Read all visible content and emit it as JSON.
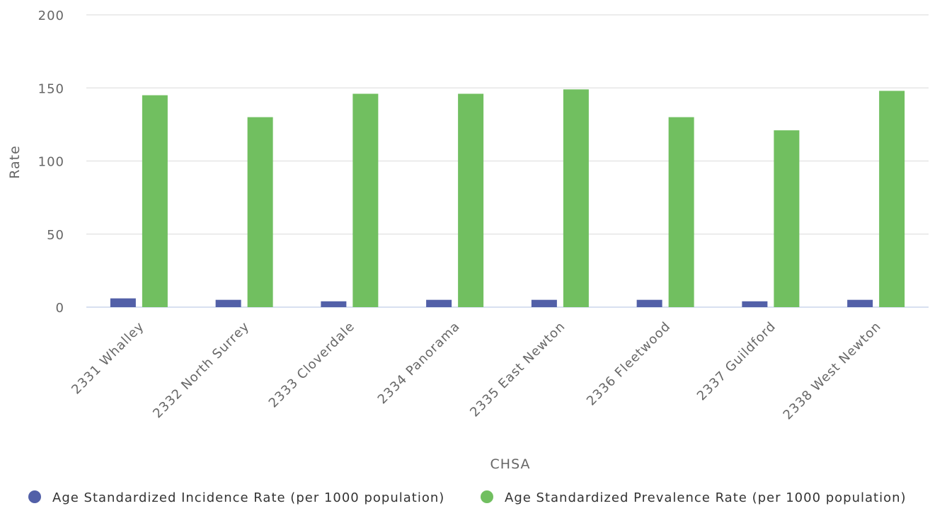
{
  "chart_data": {
    "type": "bar",
    "title": "",
    "xlabel": "CHSA",
    "ylabel": "Rate",
    "ylim": [
      0,
      200
    ],
    "yticks": [
      0,
      50,
      100,
      150,
      200
    ],
    "grid": true,
    "legend_position": "bottom",
    "categories": [
      "2331 Whalley",
      "2332 North Surrey",
      "2333 Cloverdale",
      "2334 Panorama",
      "2335 East Newton",
      "2336 Fleetwood",
      "2337 Guildford",
      "2338 West Newton"
    ],
    "series": [
      {
        "name": "Age Standardized Incidence Rate (per 1000 population)",
        "color": "#5260a8",
        "values": [
          6,
          5,
          4,
          5,
          5,
          5,
          4,
          5
        ]
      },
      {
        "name": "Age Standardized Prevalence Rate (per 1000 population)",
        "color": "#71bf60",
        "values": [
          145,
          130,
          146,
          146,
          149,
          130,
          121,
          148
        ]
      }
    ]
  }
}
